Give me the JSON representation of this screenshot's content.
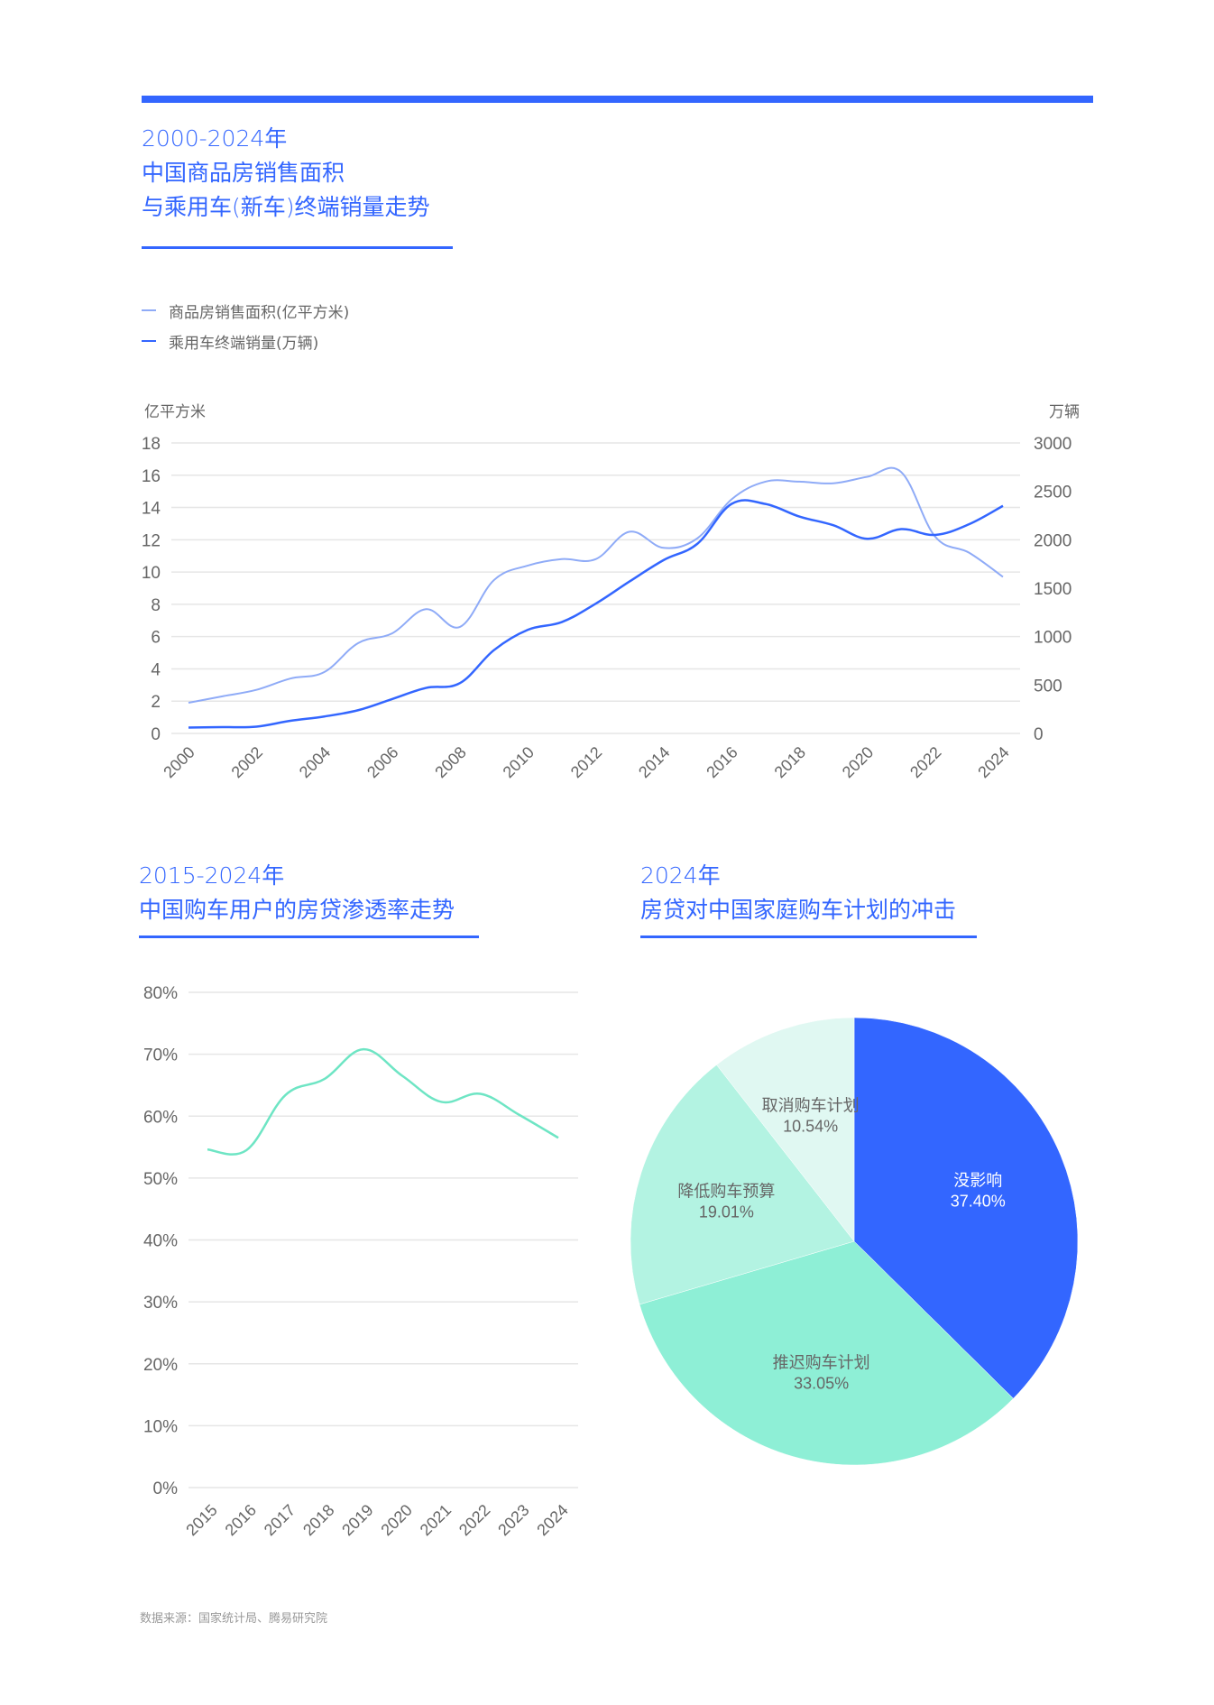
{
  "section1": {
    "title_lines": [
      "2000-2024年",
      "中国商品房销售面积",
      "与乘用车(新车)终端销量走势"
    ],
    "legend": [
      {
        "label": "商品房销售面积(亿平方米)",
        "color": "#8fabf7"
      },
      {
        "label": "乘用车终端销量(万辆)",
        "color": "#3366ff"
      }
    ],
    "left_unit": "亿平方米",
    "right_unit": "万辆"
  },
  "section2": {
    "title_lines": [
      "2015-2024年",
      "中国购车用户的房贷渗透率走势"
    ]
  },
  "section3": {
    "title_lines": [
      "2024年",
      "房贷对中国家庭购车计划的冲击"
    ]
  },
  "footer": {
    "source": "数据来源：国家统计局、腾易研究院"
  },
  "colors": {
    "accent": "#3366ff",
    "light_blue": "#8fabf7",
    "teal": "#6ee5c4",
    "grid": "#e6e6e6",
    "axis_text": "#666666"
  },
  "chart_data": [
    {
      "type": "line",
      "title": "2000-2024年 中国商品房销售面积与乘用车(新车)终端销量走势",
      "x": [
        "2000",
        "2001",
        "2002",
        "2003",
        "2004",
        "2005",
        "2006",
        "2007",
        "2008",
        "2009",
        "2010",
        "2011",
        "2012",
        "2013",
        "2014",
        "2015",
        "2016",
        "2017",
        "2018",
        "2019",
        "2020",
        "2021",
        "2022",
        "2023",
        "2024"
      ],
      "x_tick_labels": [
        "2000",
        "2002",
        "2004",
        "2006",
        "2008",
        "2010",
        "2012",
        "2014",
        "2016",
        "2018",
        "2020",
        "2022",
        "2024"
      ],
      "series": [
        {
          "name": "商品房销售面积(亿平方米)",
          "axis": "left",
          "color": "#8fabf7",
          "values": [
            1.9,
            2.3,
            2.7,
            3.4,
            3.8,
            5.6,
            6.2,
            7.7,
            6.6,
            9.5,
            10.4,
            10.8,
            10.8,
            12.5,
            11.5,
            12.1,
            14.5,
            15.6,
            15.6,
            15.5,
            15.9,
            16.2,
            12.2,
            11.2,
            9.7
          ]
        },
        {
          "name": "乘用车终端销量(万辆)",
          "axis": "right",
          "color": "#3366ff",
          "values": [
            60,
            65,
            70,
            130,
            175,
            240,
            355,
            470,
            520,
            860,
            1070,
            1150,
            1340,
            1570,
            1790,
            1960,
            2370,
            2370,
            2240,
            2150,
            2010,
            2110,
            2050,
            2160,
            2350
          ]
        }
      ],
      "ylabel_left": "亿平方米",
      "ylabel_right": "万辆",
      "ylim_left": [
        0,
        18
      ],
      "yticks_left": [
        0,
        2,
        4,
        6,
        8,
        10,
        12,
        14,
        16,
        18
      ],
      "ylim_right": [
        0,
        3000
      ],
      "yticks_right": [
        0,
        500,
        1000,
        1500,
        2000,
        2500,
        3000
      ],
      "grid": true,
      "legend_position": "top-left"
    },
    {
      "type": "line",
      "title": "2015-2024年 中国购车用户的房贷渗透率走势",
      "x": [
        "2015",
        "2016",
        "2017",
        "2018",
        "2019",
        "2020",
        "2021",
        "2022",
        "2023",
        "2024"
      ],
      "series": [
        {
          "name": "房贷渗透率",
          "color": "#6ee5c4",
          "values": [
            54.6,
            54.5,
            63.4,
            66.0,
            70.8,
            66.5,
            62.3,
            63.6,
            60.2,
            56.5
          ]
        }
      ],
      "ylim": [
        0,
        80
      ],
      "yticks": [
        "0%",
        "10%",
        "20%",
        "30%",
        "40%",
        "50%",
        "60%",
        "70%",
        "80%"
      ],
      "grid": true
    },
    {
      "type": "pie",
      "title": "2024年 房贷对中国家庭购车计划的冲击",
      "slices": [
        {
          "label": "没影响",
          "value": 37.4,
          "display": "37.40%",
          "color": "#3366ff",
          "text_color": "#ffffff"
        },
        {
          "label": "推迟购车计划",
          "value": 33.05,
          "display": "33.05%",
          "color": "#8eefd6",
          "text_color": "#666666"
        },
        {
          "label": "降低购车预算",
          "value": 19.01,
          "display": "19.01%",
          "color": "#b3f3e2",
          "text_color": "#666666"
        },
        {
          "label": "取消购车计划",
          "value": 10.54,
          "display": "10.54%",
          "color": "#e0f8f2",
          "text_color": "#666666"
        }
      ]
    }
  ]
}
